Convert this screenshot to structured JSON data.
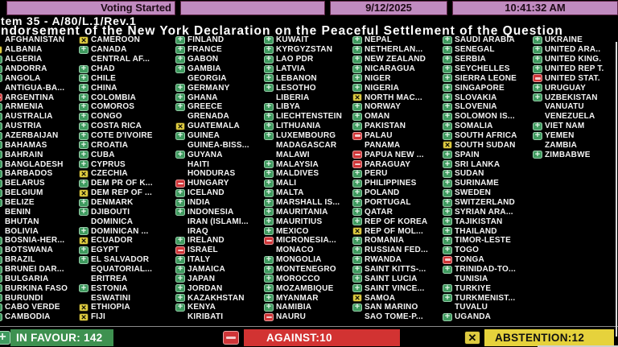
{
  "header": {
    "status_label": "Voting Started",
    "date": "9/12/2025",
    "time": "10:41:32 AM",
    "item_line": "tem 35 - A/80/L.1/Rev.1",
    "title_line": "ndorsement of the New York Declaration on the Peaceful Settlement of the Question"
  },
  "footer": {
    "in_favour_label": "IN FAVOUR: 142",
    "against_label": "AGAINST:10",
    "abstention_label": "ABSTENTION:12",
    "in_favour_count": 142,
    "against_count": 10,
    "abstention_count": 12
  },
  "vote_legend": {
    "Y": "in favour",
    "N": "against",
    "A": "abstention",
    "": "no vote"
  },
  "colors": {
    "favour": "#3f9a5f",
    "against": "#cf3538",
    "abstain": "#decb40",
    "header_pink": "#c08bc0",
    "footer_green": "#3e9150",
    "footer_red": "#d23332",
    "footer_yellow": "#e6d23c"
  },
  "columns": [
    [
      [
        "AFGHANISTAN",
        ""
      ],
      [
        "ALBANIA",
        "A"
      ],
      [
        "ALGERIA",
        "Y"
      ],
      [
        "ANDORRA",
        "Y"
      ],
      [
        "ANGOLA",
        "Y"
      ],
      [
        "ANTIGUA-BA...",
        ""
      ],
      [
        "ARGENTINA",
        "N"
      ],
      [
        "ARMENIA",
        "Y"
      ],
      [
        "AUSTRALIA",
        "Y"
      ],
      [
        "AUSTRIA",
        "Y"
      ],
      [
        "AZERBAIJAN",
        "Y"
      ],
      [
        "BAHAMAS",
        "Y"
      ],
      [
        "BAHRAIN",
        "Y"
      ],
      [
        "BANGLADESH",
        "Y"
      ],
      [
        "BARBADOS",
        "Y"
      ],
      [
        "BELARUS",
        "Y"
      ],
      [
        "BELGIUM",
        "Y"
      ],
      [
        "BELIZE",
        "Y"
      ],
      [
        "BENIN",
        ""
      ],
      [
        "BHUTAN",
        ""
      ],
      [
        "BOLIVIA",
        ""
      ],
      [
        "BOSNIA-HER...",
        "Y"
      ],
      [
        "BOTSWANA",
        "Y"
      ],
      [
        "BRAZIL",
        "Y"
      ],
      [
        "BRUNEI DAR...",
        "Y"
      ],
      [
        "BULGARIA",
        "Y"
      ],
      [
        "BURKINA FASO",
        "Y"
      ],
      [
        "BURUNDI",
        "Y"
      ],
      [
        "CABO VERDE",
        "Y"
      ],
      [
        "CAMBODIA",
        "Y"
      ]
    ],
    [
      [
        "CAMEROON",
        "A"
      ],
      [
        "CANADA",
        "Y"
      ],
      [
        "CENTRAL AF...",
        ""
      ],
      [
        "CHAD",
        "Y"
      ],
      [
        "CHILE",
        "Y"
      ],
      [
        "CHINA",
        "Y"
      ],
      [
        "COLOMBIA",
        "Y"
      ],
      [
        "COMOROS",
        "Y"
      ],
      [
        "CONGO",
        "Y"
      ],
      [
        "COSTA RICA",
        "Y"
      ],
      [
        "COTE D'IVOIRE",
        "Y"
      ],
      [
        "CROATIA",
        "Y"
      ],
      [
        "CUBA",
        "Y"
      ],
      [
        "CYPRUS",
        "Y"
      ],
      [
        "CZECHIA",
        "A"
      ],
      [
        "DEM PR OF K...",
        "Y"
      ],
      [
        "DEM REP OF ...",
        "A"
      ],
      [
        "DENMARK",
        "Y"
      ],
      [
        "DJIBOUTI",
        "Y"
      ],
      [
        "DOMINICA",
        ""
      ],
      [
        "DOMINICAN ...",
        "Y"
      ],
      [
        "ECUADOR",
        "A"
      ],
      [
        "EGYPT",
        "Y"
      ],
      [
        "EL SALVADOR",
        "Y"
      ],
      [
        "EQUATORIAL...",
        ""
      ],
      [
        "ERITREA",
        ""
      ],
      [
        "ESTONIA",
        "Y"
      ],
      [
        "ESWATINI",
        ""
      ],
      [
        "ETHIOPIA",
        "A"
      ],
      [
        "FIJI",
        "A"
      ]
    ],
    [
      [
        "FINLAND",
        "Y"
      ],
      [
        "FRANCE",
        "Y"
      ],
      [
        "GABON",
        "Y"
      ],
      [
        "GAMBIA",
        "Y"
      ],
      [
        "GEORGIA",
        ""
      ],
      [
        "GERMANY",
        "Y"
      ],
      [
        "GHANA",
        "Y"
      ],
      [
        "GREECE",
        "Y"
      ],
      [
        "GRENADA",
        ""
      ],
      [
        "GUATEMALA",
        "A"
      ],
      [
        "GUINEA",
        "Y"
      ],
      [
        "GUINEA-BISS...",
        ""
      ],
      [
        "GUYANA",
        "Y"
      ],
      [
        "HAITI",
        ""
      ],
      [
        "HONDURAS",
        ""
      ],
      [
        "HUNGARY",
        "N"
      ],
      [
        "ICELAND",
        "Y"
      ],
      [
        "INDIA",
        "Y"
      ],
      [
        "INDONESIA",
        "Y"
      ],
      [
        "IRAN (ISLAMI...",
        ""
      ],
      [
        "IRAQ",
        ""
      ],
      [
        "IRELAND",
        "Y"
      ],
      [
        "ISRAEL",
        "N"
      ],
      [
        "ITALY",
        "Y"
      ],
      [
        "JAMAICA",
        "Y"
      ],
      [
        "JAPAN",
        "Y"
      ],
      [
        "JORDAN",
        "Y"
      ],
      [
        "KAZAKHSTAN",
        "Y"
      ],
      [
        "KENYA",
        "Y"
      ],
      [
        "KIRIBATI",
        ""
      ]
    ],
    [
      [
        "KUWAIT",
        "Y"
      ],
      [
        "KYRGYZSTAN",
        "Y"
      ],
      [
        "LAO PDR",
        "Y"
      ],
      [
        "LATVIA",
        "Y"
      ],
      [
        "LEBANON",
        "Y"
      ],
      [
        "LESOTHO",
        "Y"
      ],
      [
        "LIBERIA",
        ""
      ],
      [
        "LIBYA",
        "Y"
      ],
      [
        "LIECHTENSTEIN",
        "Y"
      ],
      [
        "LITHUANIA",
        "Y"
      ],
      [
        "LUXEMBOURG",
        "Y"
      ],
      [
        "MADAGASCAR",
        ""
      ],
      [
        "MALAWI",
        ""
      ],
      [
        "MALAYSIA",
        "Y"
      ],
      [
        "MALDIVES",
        "Y"
      ],
      [
        "MALI",
        "Y"
      ],
      [
        "MALTA",
        "Y"
      ],
      [
        "MARSHALL IS...",
        "Y"
      ],
      [
        "MAURITANIA",
        "Y"
      ],
      [
        "MAURITIUS",
        "Y"
      ],
      [
        "MEXICO",
        "Y"
      ],
      [
        "MICRONESIA...",
        "N"
      ],
      [
        "MONACO",
        ""
      ],
      [
        "MONGOLIA",
        "Y"
      ],
      [
        "MONTENEGRO",
        "Y"
      ],
      [
        "MOROCCO",
        "Y"
      ],
      [
        "MOZAMBIQUE",
        "Y"
      ],
      [
        "MYANMAR",
        "Y"
      ],
      [
        "NAMIBIA",
        "Y"
      ],
      [
        "NAURU",
        "N"
      ]
    ],
    [
      [
        "NEPAL",
        "Y"
      ],
      [
        "NETHERLAN...",
        "Y"
      ],
      [
        "NEW ZEALAND",
        "Y"
      ],
      [
        "NICARAGUA",
        "Y"
      ],
      [
        "NIGER",
        "Y"
      ],
      [
        "NIGERIA",
        "Y"
      ],
      [
        "NORTH MAC...",
        "A"
      ],
      [
        "NORWAY",
        "Y"
      ],
      [
        "OMAN",
        "Y"
      ],
      [
        "PAKISTAN",
        "Y"
      ],
      [
        "PALAU",
        "N"
      ],
      [
        "PANAMA",
        ""
      ],
      [
        "PAPUA NEW ...",
        "N"
      ],
      [
        "PARAGUAY",
        "N"
      ],
      [
        "PERU",
        "Y"
      ],
      [
        "PHILIPPINES",
        "Y"
      ],
      [
        "POLAND",
        "Y"
      ],
      [
        "PORTUGAL",
        "Y"
      ],
      [
        "QATAR",
        "Y"
      ],
      [
        "REP OF KOREA",
        "Y"
      ],
      [
        "REP OF MOL...",
        "A"
      ],
      [
        "ROMANIA",
        "Y"
      ],
      [
        "RUSSIAN FED...",
        "Y"
      ],
      [
        "RWANDA",
        "Y"
      ],
      [
        "SAINT KITTS-...",
        "Y"
      ],
      [
        "SAINT LUCIA",
        "Y"
      ],
      [
        "SAINT VINCE...",
        "Y"
      ],
      [
        "SAMOA",
        "A"
      ],
      [
        "SAN MARINO",
        "Y"
      ],
      [
        "SAO TOME-P...",
        ""
      ]
    ],
    [
      [
        "SAUDI ARABIA",
        "Y"
      ],
      [
        "SENEGAL",
        "Y"
      ],
      [
        "SERBIA",
        "Y"
      ],
      [
        "SEYCHELLES",
        "Y"
      ],
      [
        "SIERRA LEONE",
        "Y"
      ],
      [
        "SINGAPORE",
        "Y"
      ],
      [
        "SLOVAKIA",
        "Y"
      ],
      [
        "SLOVENIA",
        "Y"
      ],
      [
        "SOLOMON IS...",
        "Y"
      ],
      [
        "SOMALIA",
        "Y"
      ],
      [
        "SOUTH AFRICA",
        "Y"
      ],
      [
        "SOUTH SUDAN",
        "A"
      ],
      [
        "SPAIN",
        "Y"
      ],
      [
        "SRI LANKA",
        "Y"
      ],
      [
        "SUDAN",
        "Y"
      ],
      [
        "SURINAME",
        "Y"
      ],
      [
        "SWEDEN",
        "Y"
      ],
      [
        "SWITZERLAND",
        "Y"
      ],
      [
        "SYRIAN ARA...",
        "Y"
      ],
      [
        "TAJIKISTAN",
        "Y"
      ],
      [
        "THAILAND",
        "Y"
      ],
      [
        "TIMOR-LESTE",
        "Y"
      ],
      [
        "TOGO",
        "Y"
      ],
      [
        "TONGA",
        "N"
      ],
      [
        "TRINIDAD-TO...",
        "Y"
      ],
      [
        "TUNISIA",
        ""
      ],
      [
        "TURKIYE",
        "Y"
      ],
      [
        "TURKMENIST...",
        "Y"
      ],
      [
        "TUVALU",
        ""
      ],
      [
        "UGANDA",
        "Y"
      ]
    ],
    [
      [
        "UKRAINE",
        "Y"
      ],
      [
        "UNITED ARA..",
        "Y"
      ],
      [
        "UNITED KING.",
        "Y"
      ],
      [
        "UNITED REP T.",
        "Y"
      ],
      [
        "UNITED STAT.",
        "N"
      ],
      [
        "URUGUAY",
        "Y"
      ],
      [
        "UZBEKISTAN",
        "Y"
      ],
      [
        "VANUATU",
        ""
      ],
      [
        "VENEZUELA",
        ""
      ],
      [
        "VIET NAM",
        "Y"
      ],
      [
        "YEMEN",
        "Y"
      ],
      [
        "ZAMBIA",
        ""
      ],
      [
        "ZIMBABWE",
        "Y"
      ]
    ]
  ]
}
